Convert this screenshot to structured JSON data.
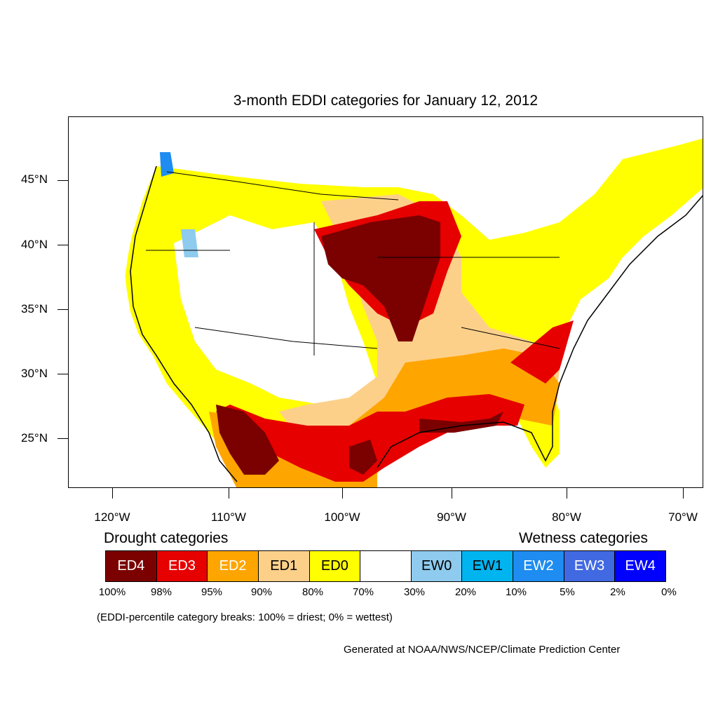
{
  "title": "3-month EDDI categories for January 12, 2012",
  "latitude_labels": [
    "45°N",
    "40°N",
    "35°N",
    "30°N",
    "25°N"
  ],
  "longitude_labels": [
    "120°W",
    "110°W",
    "100°W",
    "90°W",
    "80°W",
    "70°W"
  ],
  "legend": {
    "drought_title": "Drought categories",
    "wetness_title": "Wetness categories",
    "categories": [
      {
        "label": "ED4",
        "color": "#7b0000",
        "text_color": "#ffffff"
      },
      {
        "label": "ED3",
        "color": "#e60000",
        "text_color": "#ffffff"
      },
      {
        "label": "ED2",
        "color": "#ffa500",
        "text_color": "#ffffff"
      },
      {
        "label": "ED1",
        "color": "#fdd08a",
        "text_color": "#000000"
      },
      {
        "label": "ED0",
        "color": "#ffff00",
        "text_color": "#000000"
      },
      {
        "label": "",
        "color": "#ffffff",
        "text_color": "#000000"
      },
      {
        "label": "EW0",
        "color": "#8ecbee",
        "text_color": "#000000"
      },
      {
        "label": "EW1",
        "color": "#00b4f0",
        "text_color": "#000000"
      },
      {
        "label": "EW2",
        "color": "#1e8cf0",
        "text_color": "#ffffff"
      },
      {
        "label": "EW3",
        "color": "#4169e1",
        "text_color": "#ffffff"
      },
      {
        "label": "EW4",
        "color": "#0000ff",
        "text_color": "#ffffff"
      }
    ],
    "breaks": [
      "100%",
      "98%",
      "95%",
      "90%",
      "80%",
      "70%",
      "30%",
      "20%",
      "10%",
      "5%",
      "2%",
      "0%"
    ]
  },
  "note": "(EDDI-percentile category breaks: 100% = driest; 0% = wettest)",
  "credit": "Generated at NOAA/NWS/NCEP/Climate Prediction Center"
}
